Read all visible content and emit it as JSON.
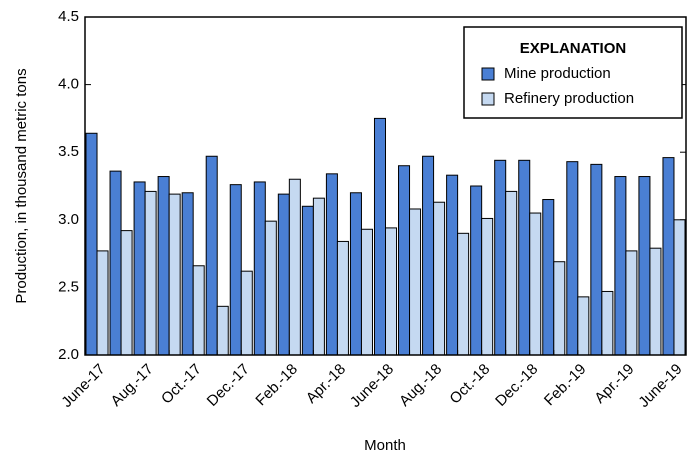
{
  "chart_data": {
    "type": "bar",
    "y_label": "Production, in thousand metric tons",
    "x_label": "Month",
    "legend_title": "EXPLANATION",
    "categories": [
      "June-17",
      null,
      "Aug.-17",
      null,
      "Oct.-17",
      null,
      "Dec.-17",
      null,
      "Feb.-18",
      null,
      "Apr.-18",
      null,
      "June-18",
      null,
      "Aug.-18",
      null,
      "Oct.-18",
      null,
      "Dec.-18",
      null,
      "Feb.-19",
      null,
      "Apr.-19",
      null,
      "June-19"
    ],
    "series": [
      {
        "name": "Mine production",
        "color": "#4a7fd4",
        "values": [
          3.64,
          3.36,
          3.28,
          3.32,
          3.2,
          3.47,
          3.26,
          3.28,
          3.19,
          3.1,
          3.34,
          3.2,
          3.75,
          3.4,
          3.47,
          3.33,
          3.25,
          3.44,
          3.44,
          3.15,
          3.43,
          3.41,
          3.32,
          3.32,
          3.46
        ]
      },
      {
        "name": "Refinery production",
        "color": "#c5d9f1",
        "values": [
          2.77,
          2.92,
          3.21,
          3.19,
          2.66,
          2.36,
          2.62,
          2.99,
          3.3,
          3.16,
          2.84,
          2.93,
          2.94,
          3.08,
          3.13,
          2.9,
          3.01,
          3.21,
          3.05,
          2.69,
          2.43,
          2.47,
          2.77,
          2.79,
          3.0
        ]
      }
    ],
    "ylim": [
      2,
      4.5
    ],
    "yticks": [
      {
        "value": 2,
        "label": "2.0"
      },
      2.5,
      {
        "value": 3,
        "label": "3.0"
      },
      3.5,
      {
        "value": 4,
        "label": "4.0"
      },
      4.5
    ],
    "grid": false,
    "legend_position": "upper right"
  }
}
